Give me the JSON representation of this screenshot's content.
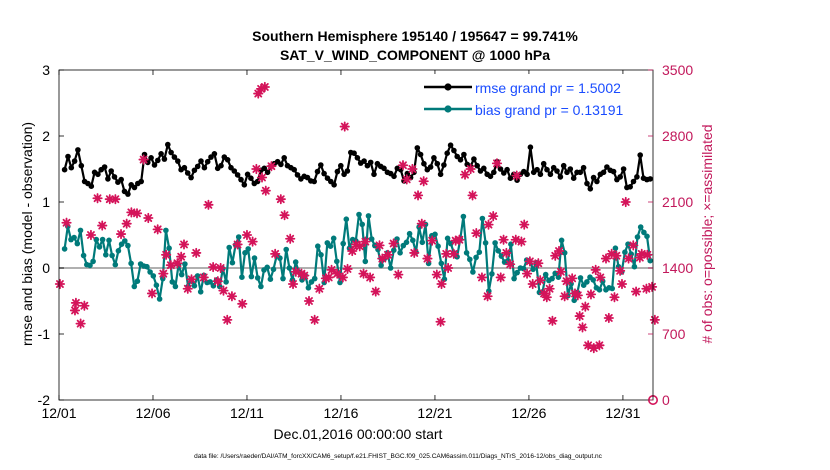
{
  "chart_data": {
    "type": "line",
    "title_line1": "Southern Hemisphere 195140 / 195647 = 99.741%",
    "title_line2": "SAT_V_WIND_COMPONENT @ 1000 hPa",
    "xlabel": "Dec.01,2016 00:00:00 start",
    "ylabel_left": "rmse and bias (model - observation)",
    "ylabel_right": "# of obs: o=possible; ×=assimilated",
    "xlim": [
      0,
      31.6
    ],
    "ylim_left": [
      -2,
      3
    ],
    "ylim_right": [
      0,
      3500
    ],
    "x_ticks": [
      {
        "x": 0,
        "label": "12/01"
      },
      {
        "x": 5,
        "label": "12/06"
      },
      {
        "x": 10,
        "label": "12/11"
      },
      {
        "x": 15,
        "label": "12/16"
      },
      {
        "x": 20,
        "label": "12/21"
      },
      {
        "x": 25,
        "label": "12/26"
      },
      {
        "x": 30,
        "label": "12/31"
      }
    ],
    "y_ticks_left": [
      -2,
      -1,
      0,
      1,
      2,
      3
    ],
    "y_ticks_right": [
      0,
      700,
      1400,
      2100,
      2800,
      3500
    ],
    "zero_line": 0,
    "legend": [
      {
        "label": "rmse grand pr = 1.5002",
        "color": "#000000"
      },
      {
        "label": "bias grand pr = 0.13191",
        "color": "#007a7a"
      }
    ],
    "series": [
      {
        "name": "rmse",
        "axis": "left",
        "color": "#000000",
        "values": [
          1.49,
          1.69,
          1.52,
          1.62,
          1.79,
          1.55,
          1.31,
          1.28,
          1.24,
          1.45,
          1.42,
          1.49,
          1.53,
          1.35,
          1.47,
          1.38,
          1.3,
          1.34,
          1.16,
          1.12,
          1.26,
          1.22,
          1.28,
          1.31,
          1.72,
          1.6,
          1.67,
          1.56,
          1.63,
          1.73,
          1.65,
          1.87,
          1.75,
          1.68,
          1.62,
          1.49,
          1.52,
          1.44,
          1.37,
          1.48,
          1.54,
          1.62,
          1.52,
          1.61,
          1.68,
          1.73,
          1.51,
          1.55,
          1.68,
          1.64,
          1.52,
          1.47,
          1.41,
          1.34,
          1.26,
          1.42,
          1.36,
          1.28,
          1.31,
          1.48,
          1.51,
          1.45,
          1.54,
          1.58,
          1.61,
          1.57,
          1.67,
          1.55,
          1.52,
          1.49,
          1.41,
          1.35,
          1.39,
          1.37,
          1.32,
          1.31,
          1.46,
          1.56,
          1.43,
          1.36,
          1.31,
          1.26,
          1.46,
          1.55,
          1.42,
          1.47,
          1.75,
          1.74,
          1.67,
          1.59,
          1.62,
          1.55,
          1.6,
          1.42,
          1.58,
          1.54,
          1.51,
          1.45,
          1.43,
          1.39,
          1.51,
          1.49,
          1.32,
          1.43,
          1.37,
          1.45,
          1.82,
          1.72,
          1.58,
          1.49,
          1.53,
          1.67,
          1.58,
          1.42,
          1.56,
          1.74,
          1.86,
          1.78,
          1.69,
          1.64,
          1.72,
          1.57,
          1.54,
          1.65,
          1.55,
          1.47,
          1.51,
          1.42,
          1.39,
          1.45,
          1.61,
          1.5,
          1.44,
          1.49,
          1.36,
          1.42,
          1.33,
          1.42,
          1.46,
          1.42,
          1.83,
          1.45,
          1.49,
          1.42,
          1.58,
          1.49,
          1.42,
          1.52,
          1.47,
          1.38,
          1.55,
          1.45,
          1.5,
          1.36,
          1.45,
          1.45,
          1.52,
          1.28,
          1.2,
          1.37,
          1.31,
          1.42,
          1.45,
          1.53,
          1.48,
          1.46,
          1.34,
          1.38,
          1.5,
          1.22,
          1.23,
          1.31,
          1.38,
          1.71,
          1.36,
          1.34,
          1.35
        ]
      },
      {
        "name": "bias",
        "axis": "left",
        "color": "#007a7a",
        "values": [
          0.29,
          0.63,
          0.43,
          0.46,
          0.37,
          0.57,
          0.19,
          0.05,
          0.04,
          0.1,
          0.43,
          0.32,
          0.43,
          0.2,
          0.42,
          0.19,
          0.05,
          0.26,
          0.36,
          0.41,
          0.34,
          0.07,
          -0.28,
          -0.2,
          0.06,
          0.03,
          0.02,
          -0.06,
          -0.12,
          -0.26,
          -0.47,
          -0.16,
          0.57,
          0.3,
          -0.21,
          -0.28,
          0.05,
          -0.1,
          0.06,
          -0.28,
          -0.17,
          -0.27,
          -0.12,
          -0.36,
          -0.11,
          -0.22,
          -0.21,
          -0.27,
          -0.18,
          -0.28,
          -0.01,
          -0.21,
          0.31,
          0.08,
          0.35,
          0.47,
          -0.14,
          0.23,
          0.29,
          -0.13,
          0.15,
          -0.15,
          -0.28,
          -0.03,
          0.01,
          -0.17,
          -0.02,
          0.19,
          0.15,
          -0.16,
          0.28,
          0.0,
          -0.18,
          0.09,
          -0.06,
          -0.18,
          -0.11,
          -0.3,
          -0.21,
          -0.16,
          0.33,
          0.2,
          -0.22,
          0.38,
          0.33,
          0.45,
          0.1,
          -0.22,
          0.37,
          0.74,
          0.3,
          0.43,
          0.41,
          0.81,
          0.66,
          0.1,
          0.79,
          0.44,
          0.34,
          0.28,
          0.04,
          0.14,
          0.23,
          0.0,
          0.27,
          0.44,
          0.23,
          0.34,
          0.39,
          0.52,
          0.42,
          0.24,
          0.62,
          0.39,
          0.66,
          0.07,
          0.49,
          0.51,
          0.33,
          0.07,
          -0.17,
          0.45,
          0.37,
          0.23,
          0.17,
          0.44,
          0.78,
          0.23,
          0.13,
          -0.06,
          0.16,
          0.24,
          0.75,
          0.38,
          -0.35,
          -0.09,
          0.38,
          0.26,
          0.18,
          0.09,
          0.11,
          0.36,
          -0.16,
          -0.07,
          0.0,
          -0.01,
          0.12,
          0.1,
          -0.02,
          0.08,
          -0.37,
          -0.36,
          -0.1,
          -0.19,
          -0.16,
          -0.08,
          -0.14,
          0.42,
          0.23,
          -0.42,
          -0.24,
          -0.49,
          -0.37,
          -0.15,
          -0.26,
          -0.21,
          -0.14,
          -0.18,
          -0.3,
          -0.33,
          -0.2,
          -0.33,
          -0.3,
          -0.31,
          0.3,
          0.02,
          -0.06,
          0.24,
          0.36,
          0.21,
          0.02,
          0.47,
          0.62,
          0.54,
          0.48,
          0.11
        ]
      }
    ],
    "obs_possible_right_axis": [
      0,
      0
    ],
    "obs_assimilated": {
      "axis": "right",
      "color": "#d4145a",
      "points": [
        [
          0.05,
          1230
        ],
        [
          0.4,
          1880
        ],
        [
          0.85,
          950
        ],
        [
          1.15,
          810
        ],
        [
          1.35,
          1000
        ],
        [
          1.7,
          1750
        ],
        [
          2.3,
          1850
        ],
        [
          2.7,
          2130
        ],
        [
          3.0,
          2130
        ],
        [
          3.3,
          1760
        ],
        [
          3.6,
          1870
        ],
        [
          3.85,
          1990
        ],
        [
          4.15,
          1980
        ],
        [
          4.5,
          2550
        ],
        [
          4.75,
          1930
        ],
        [
          5.25,
          1810
        ],
        [
          5.7,
          1540
        ],
        [
          5.95,
          1430
        ],
        [
          6.3,
          1450
        ],
        [
          6.5,
          1520
        ],
        [
          6.85,
          1180
        ],
        [
          7.05,
          1280
        ],
        [
          7.3,
          1560
        ],
        [
          7.7,
          1300
        ],
        [
          8.2,
          1410
        ],
        [
          8.45,
          1260
        ],
        [
          8.75,
          1160
        ],
        [
          8.95,
          850
        ],
        [
          9.2,
          1100
        ],
        [
          9.5,
          1650
        ],
        [
          10.0,
          1750
        ],
        [
          10.3,
          1680
        ],
        [
          10.5,
          2450
        ],
        [
          10.8,
          2360
        ],
        [
          11.0,
          2220
        ],
        [
          11.3,
          2480
        ],
        [
          11.5,
          1550
        ],
        [
          11.8,
          2130
        ],
        [
          12.0,
          1960
        ],
        [
          12.3,
          1710
        ],
        [
          12.6,
          1360
        ],
        [
          12.9,
          1340
        ],
        [
          13.3,
          1050
        ],
        [
          13.6,
          850
        ],
        [
          13.85,
          1180
        ],
        [
          14.2,
          1290
        ],
        [
          14.5,
          1380
        ],
        [
          14.8,
          1340
        ],
        [
          15.1,
          1300
        ],
        [
          15.35,
          1390
        ],
        [
          15.8,
          1650
        ],
        [
          16.0,
          1630
        ],
        [
          16.3,
          1680
        ],
        [
          16.55,
          1300
        ],
        [
          16.85,
          1150
        ],
        [
          17.2,
          1500
        ],
        [
          17.5,
          1540
        ],
        [
          17.8,
          1660
        ],
        [
          18.3,
          2490
        ],
        [
          18.5,
          2340
        ],
        [
          18.8,
          2450
        ],
        [
          19.1,
          2170
        ],
        [
          19.3,
          1870
        ],
        [
          19.6,
          1500
        ],
        [
          19.85,
          1690
        ],
        [
          20.1,
          1330
        ],
        [
          20.35,
          1230
        ],
        [
          20.7,
          1400
        ],
        [
          21.0,
          1550
        ],
        [
          21.3,
          1700
        ],
        [
          21.6,
          2390
        ],
        [
          21.9,
          2450
        ],
        [
          22.2,
          1770
        ],
        [
          22.5,
          1300
        ],
        [
          22.8,
          1100
        ],
        [
          23.1,
          1950
        ],
        [
          23.5,
          1300
        ],
        [
          23.8,
          1560
        ],
        [
          24.0,
          1440
        ],
        [
          24.3,
          1700
        ],
        [
          24.6,
          1680
        ],
        [
          24.9,
          1340
        ],
        [
          25.2,
          1230
        ],
        [
          25.5,
          1450
        ],
        [
          25.8,
          1130
        ],
        [
          26.1,
          1180
        ],
        [
          26.4,
          1530
        ],
        [
          26.7,
          1360
        ],
        [
          26.9,
          1100
        ],
        [
          27.3,
          1290
        ],
        [
          27.6,
          1110
        ],
        [
          27.85,
          770
        ],
        [
          28.0,
          990
        ],
        [
          28.3,
          1120
        ],
        [
          28.55,
          1380
        ],
        [
          28.8,
          1300
        ],
        [
          29.1,
          1500
        ],
        [
          29.4,
          1550
        ],
        [
          29.65,
          1530
        ],
        [
          29.95,
          1230
        ],
        [
          30.3,
          1500
        ],
        [
          30.7,
          1150
        ],
        [
          31.0,
          1550
        ],
        [
          31.3,
          1540
        ],
        [
          31.55,
          1200
        ],
        [
          31.7,
          850
        ],
        [
          0.9,
          1030
        ],
        [
          2.05,
          2140
        ],
        [
          4.95,
          1130
        ],
        [
          5.55,
          1340
        ],
        [
          6.65,
          1650
        ],
        [
          7.95,
          2070
        ],
        [
          8.6,
          1400
        ],
        [
          9.75,
          1020
        ],
        [
          10.6,
          3250
        ],
        [
          10.75,
          3300
        ],
        [
          10.95,
          3320
        ],
        [
          12.45,
          1230
        ],
        [
          13.05,
          1320
        ],
        [
          14.35,
          1300
        ],
        [
          15.2,
          2900
        ],
        [
          15.6,
          1580
        ],
        [
          16.2,
          1340
        ],
        [
          17.05,
          1640
        ],
        [
          18.05,
          1330
        ],
        [
          18.9,
          1560
        ],
        [
          19.4,
          2320
        ],
        [
          20.3,
          830
        ],
        [
          20.6,
          1550
        ],
        [
          21.1,
          1690
        ],
        [
          22.0,
          2170
        ],
        [
          22.85,
          1860
        ],
        [
          23.3,
          2510
        ],
        [
          23.65,
          1700
        ],
        [
          24.35,
          2380
        ],
        [
          24.75,
          1860
        ],
        [
          25.05,
          1470
        ],
        [
          25.6,
          1270
        ],
        [
          25.95,
          1090
        ],
        [
          26.25,
          840
        ],
        [
          26.6,
          1580
        ],
        [
          27.0,
          1260
        ],
        [
          27.45,
          1130
        ],
        [
          27.7,
          890
        ],
        [
          28.15,
          580
        ],
        [
          28.45,
          550
        ],
        [
          28.75,
          580
        ],
        [
          29.25,
          870
        ],
        [
          29.55,
          1090
        ],
        [
          29.85,
          1370
        ],
        [
          30.15,
          2100
        ],
        [
          30.55,
          1640
        ],
        [
          30.9,
          1510
        ],
        [
          31.25,
          1180
        ]
      ]
    },
    "footnote": "data file: /Users/raeder/DAI/ATM_forcXX/CAM6_setup/f.e21.FHIST_BGC.f09_025.CAM6assim.011/Diags_NTrS_2016-12/obs_diag_output.nc",
    "colors": {
      "rmse": "#000000",
      "bias": "#007a7a",
      "obs": "#d4145a",
      "right_axis": "#c2185b",
      "zero_line": "#b0b0b0",
      "legend_text": "#1a4cff"
    }
  }
}
